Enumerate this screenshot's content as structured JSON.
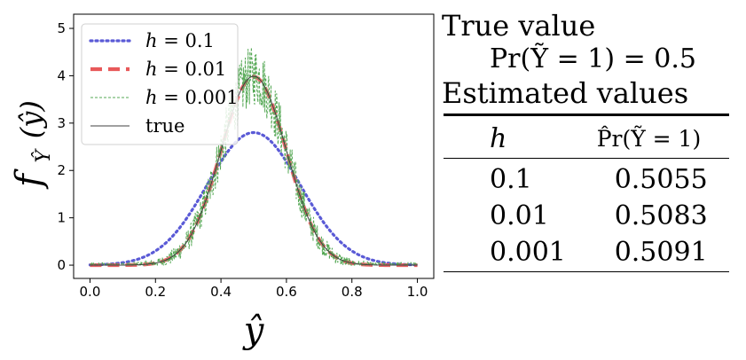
{
  "chart_data": {
    "type": "line",
    "xlabel": "ŷ",
    "ylabel": "f",
    "ylabel_sub": "Ŷ",
    "ylabel_arg": "(ŷ)",
    "xlim": [
      -0.05,
      1.05
    ],
    "ylim": [
      -0.28,
      5.3
    ],
    "xticks": [
      "0.0",
      "0.2",
      "0.4",
      "0.6",
      "0.8",
      "1.0"
    ],
    "yticks": [
      "0",
      "1",
      "2",
      "3",
      "4",
      "5"
    ],
    "grid": false,
    "legend_placement": "top-left",
    "series": [
      {
        "name": "h = 0.1",
        "legend_var": "h",
        "legend_val": "= 0.1",
        "color": "#5a5ad6",
        "style": "dotted",
        "mean": 0.5,
        "sd": 0.142,
        "peak": 2.8
      },
      {
        "name": "h = 0.01",
        "legend_var": "h",
        "legend_val": "= 0.01",
        "color": "#e8595a",
        "style": "dashed",
        "mean": 0.5,
        "sd": 0.1,
        "peak": 3.98
      },
      {
        "name": "h = 0.001",
        "legend_var": "h",
        "legend_val": "= 0.001",
        "color": "#55a855",
        "style": "thin-dashed",
        "mean": 0.5,
        "sd": 0.1,
        "peak": 4.0,
        "noise": true
      },
      {
        "name": "true",
        "legend_var": "",
        "legend_val": "true",
        "color": "#404040",
        "style": "solid",
        "mean": 0.5,
        "sd": 0.1,
        "peak": 3.99
      }
    ]
  },
  "table": {
    "true_heading": "True value",
    "true_expr": "Pr(Ỹ = 1) = 0.5",
    "est_heading": "Estimated values",
    "col_h": "h",
    "col_pr": "P̂r(Ỹ = 1)",
    "rows": [
      {
        "h": "0.1",
        "value": "0.5055"
      },
      {
        "h": "0.01",
        "value": "0.5083"
      },
      {
        "h": "0.001",
        "value": "0.5091"
      }
    ]
  }
}
